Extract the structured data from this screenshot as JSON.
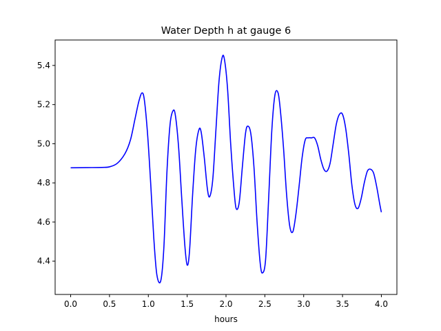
{
  "chart_data": {
    "type": "line",
    "title": "Water Depth h at gauge 6",
    "xlabel": "hours",
    "ylabel": "",
    "xlim": [
      -0.2,
      4.2
    ],
    "ylim": [
      4.23,
      5.53
    ],
    "xticks": [
      0.0,
      0.5,
      1.0,
      1.5,
      2.0,
      2.5,
      3.0,
      3.5,
      4.0
    ],
    "xtick_labels": [
      "0.0",
      "0.5",
      "1.0",
      "1.5",
      "2.0",
      "2.5",
      "3.0",
      "3.5",
      "4.0"
    ],
    "yticks": [
      4.4,
      4.6,
      4.8,
      5.0,
      5.2,
      5.4
    ],
    "ytick_labels": [
      "4.4",
      "4.6",
      "4.8",
      "5.0",
      "5.2",
      "5.4"
    ],
    "grid": false,
    "series": [
      {
        "color": "#0000ff",
        "x": [
          0.0,
          0.2,
          0.4,
          0.5,
          0.6,
          0.7,
          0.77,
          0.83,
          0.88,
          0.92,
          0.95,
          0.99,
          1.03,
          1.07,
          1.11,
          1.16,
          1.2,
          1.24,
          1.28,
          1.32,
          1.35,
          1.39,
          1.43,
          1.47,
          1.5,
          1.53,
          1.57,
          1.61,
          1.65,
          1.68,
          1.72,
          1.76,
          1.79,
          1.83,
          1.87,
          1.91,
          1.95,
          1.98,
          2.02,
          2.06,
          2.1,
          2.13,
          2.17,
          2.21,
          2.25,
          2.28,
          2.32,
          2.36,
          2.4,
          2.44,
          2.47,
          2.51,
          2.55,
          2.59,
          2.63,
          2.67,
          2.7,
          2.74,
          2.78,
          2.82,
          2.86,
          2.9,
          2.94,
          2.98,
          3.02,
          3.06,
          3.1,
          3.14,
          3.18,
          3.22,
          3.26,
          3.3,
          3.34,
          3.38,
          3.42,
          3.46,
          3.5,
          3.54,
          3.58,
          3.62,
          3.66,
          3.7,
          3.74,
          3.78,
          3.82,
          3.86,
          3.9,
          3.94,
          3.98,
          4.0
        ],
        "y": [
          4.877,
          4.878,
          4.879,
          4.882,
          4.9,
          4.95,
          5.02,
          5.13,
          5.22,
          5.26,
          5.22,
          5.05,
          4.8,
          4.52,
          4.33,
          4.3,
          4.47,
          4.86,
          5.1,
          5.17,
          5.14,
          4.98,
          4.72,
          4.48,
          4.38,
          4.45,
          4.74,
          4.97,
          5.07,
          5.06,
          4.93,
          4.77,
          4.73,
          4.82,
          5.07,
          5.32,
          5.44,
          5.43,
          5.28,
          5.0,
          4.78,
          4.67,
          4.7,
          4.88,
          5.05,
          5.09,
          5.05,
          4.88,
          4.6,
          4.39,
          4.34,
          4.41,
          4.73,
          5.07,
          5.25,
          5.26,
          5.17,
          4.98,
          4.74,
          4.58,
          4.55,
          4.64,
          4.78,
          4.93,
          5.02,
          5.03,
          5.03,
          5.03,
          4.99,
          4.92,
          4.87,
          4.86,
          4.9,
          5.0,
          5.1,
          5.15,
          5.15,
          5.08,
          4.95,
          4.79,
          4.69,
          4.67,
          4.72,
          4.8,
          4.86,
          4.87,
          4.85,
          4.78,
          4.69,
          4.65
        ]
      }
    ]
  }
}
